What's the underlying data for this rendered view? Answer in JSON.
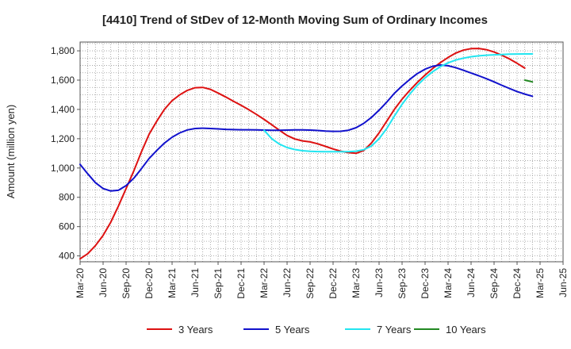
{
  "chart_data": {
    "type": "line",
    "title": "[4410]  Trend of StDev of 12-Month Moving Sum of Ordinary Incomes",
    "xlabel": "",
    "ylabel": "Amount (million yen)",
    "ylim": [
      360,
      1860
    ],
    "yticks": [
      400,
      600,
      800,
      1000,
      1200,
      1400,
      1600,
      1800
    ],
    "ytick_labels": [
      "400",
      "600",
      "800",
      "1,000",
      "1,200",
      "1,400",
      "1,600",
      "1,800"
    ],
    "x_start": "Mar-20",
    "x_end": "Jun-25",
    "xtick_labels": [
      "Mar-20",
      "Jun-20",
      "Sep-20",
      "Dec-20",
      "Mar-21",
      "Jun-21",
      "Sep-21",
      "Dec-21",
      "Mar-22",
      "Jun-22",
      "Sep-22",
      "Dec-22",
      "Mar-23",
      "Jun-23",
      "Sep-23",
      "Dec-23",
      "Mar-24",
      "Jun-24",
      "Sep-24",
      "Dec-24",
      "Mar-25",
      "Jun-25"
    ],
    "grid": true,
    "legend_position": "bottom",
    "series": [
      {
        "name": "3 Years",
        "color": "#dd1111",
        "start_index": 0,
        "values": [
          380,
          415,
          470,
          540,
          630,
          740,
          860,
          980,
          1110,
          1230,
          1320,
          1400,
          1460,
          1500,
          1530,
          1548,
          1550,
          1537,
          1512,
          1485,
          1456,
          1428,
          1398,
          1366,
          1332,
          1295,
          1258,
          1222,
          1198,
          1185,
          1178,
          1165,
          1148,
          1130,
          1115,
          1105,
          1100,
          1120,
          1170,
          1240,
          1320,
          1400,
          1470,
          1530,
          1585,
          1635,
          1680,
          1720,
          1755,
          1785,
          1805,
          1815,
          1816,
          1808,
          1792,
          1770,
          1745,
          1715,
          1682
        ]
      },
      {
        "name": "5 Years",
        "color": "#1111cc",
        "start_index": 0,
        "values": [
          1025,
          960,
          900,
          860,
          843,
          848,
          880,
          930,
          995,
          1065,
          1120,
          1170,
          1210,
          1240,
          1260,
          1270,
          1272,
          1270,
          1267,
          1264,
          1262,
          1261,
          1261,
          1260,
          1259,
          1258,
          1258,
          1259,
          1260,
          1260,
          1259,
          1256,
          1252,
          1250,
          1251,
          1258,
          1275,
          1305,
          1345,
          1395,
          1450,
          1510,
          1560,
          1605,
          1645,
          1675,
          1695,
          1703,
          1698,
          1685,
          1667,
          1648,
          1630,
          1610,
          1588,
          1565,
          1543,
          1522,
          1505,
          1490
        ]
      },
      {
        "name": "7 Years",
        "color": "#22e5f0",
        "start_index": 24,
        "values": [
          1258,
          1200,
          1163,
          1140,
          1126,
          1118,
          1114,
          1112,
          1111,
          1111,
          1111,
          1111,
          1115,
          1125,
          1150,
          1200,
          1270,
          1355,
          1435,
          1505,
          1565,
          1615,
          1658,
          1692,
          1718,
          1737,
          1750,
          1760,
          1766,
          1770,
          1773,
          1775,
          1777,
          1778,
          1779,
          1779
        ]
      },
      {
        "name": "10 Years",
        "color": "#228822",
        "start_index": 58,
        "values": [
          1600,
          1588
        ]
      }
    ]
  }
}
